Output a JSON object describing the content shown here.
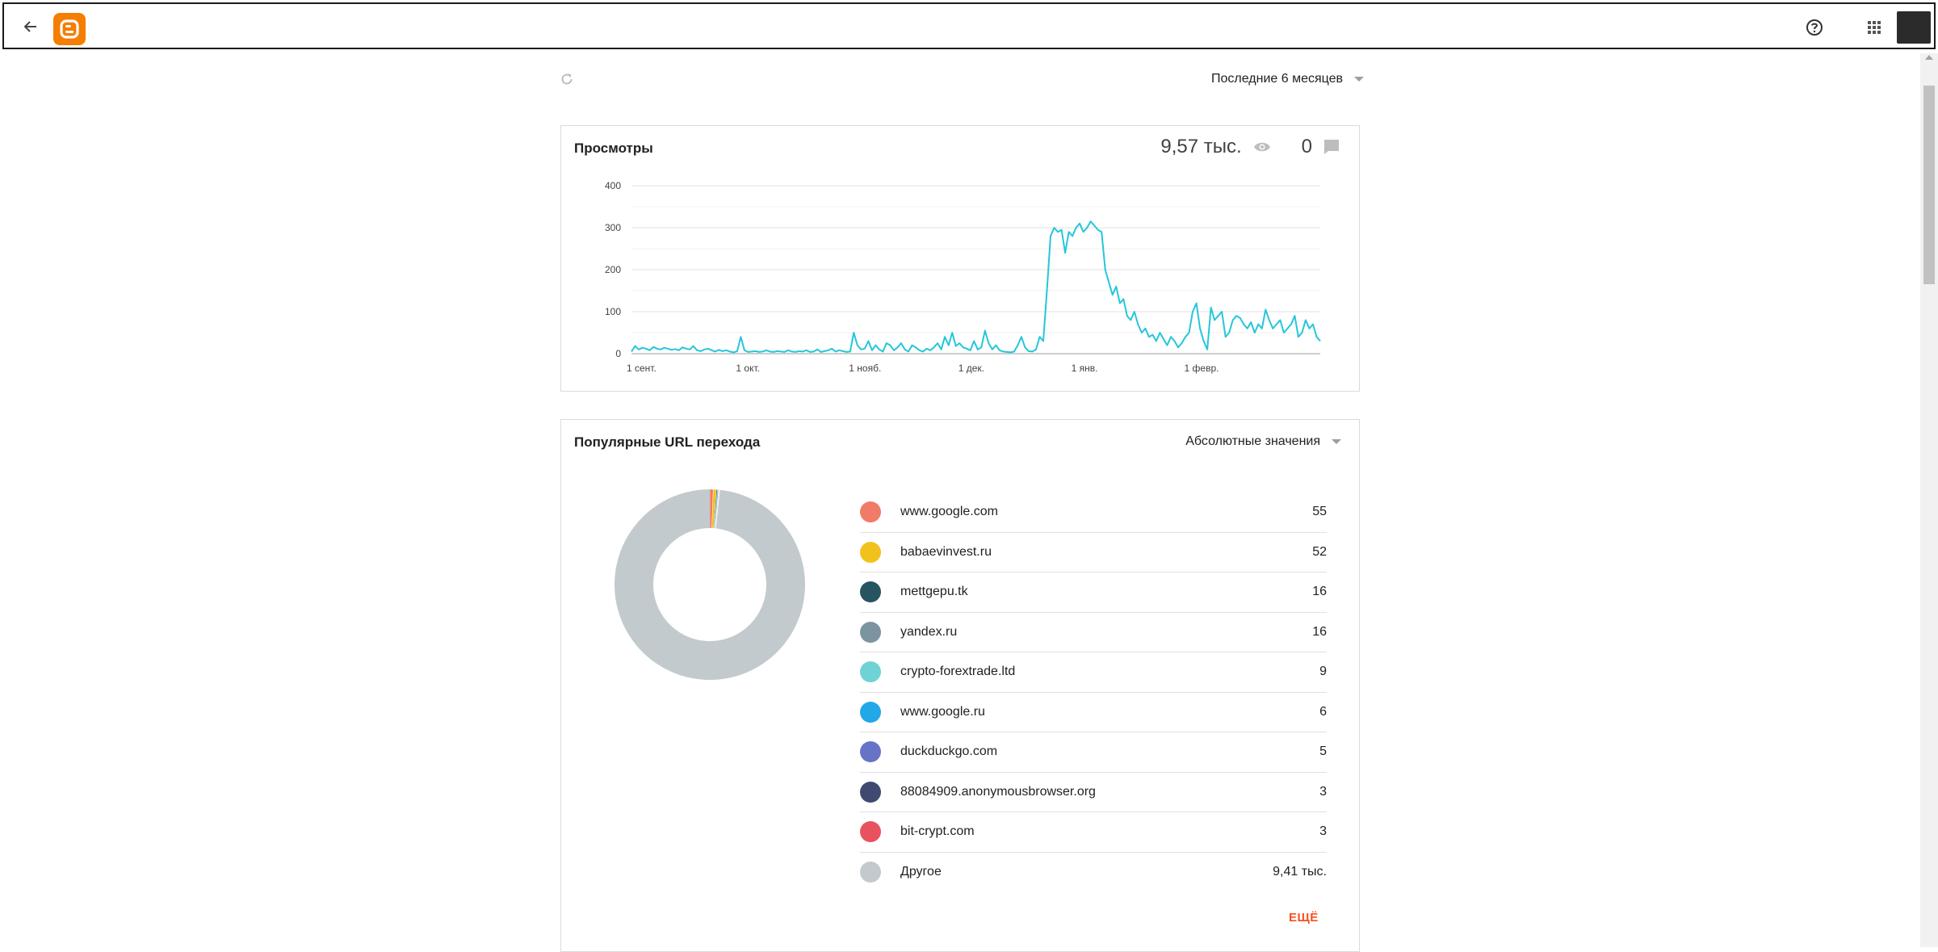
{
  "toolbar": {
    "back_icon": "arrow-left-icon",
    "logo_icon": "blogger-logo-icon",
    "help_icon": "help-circle-icon",
    "apps_icon": "apps-grid-icon"
  },
  "controls": {
    "refresh_icon": "refresh-icon",
    "period_label": "Последние 6 месяцев"
  },
  "views_card": {
    "title": "Просмотры",
    "views_total": "9,57 тыс.",
    "comments_total": "0",
    "chart_data": {
      "type": "line",
      "color": "#26c6da",
      "y_ticks": [
        "400",
        "300",
        "200",
        "100",
        "0"
      ],
      "ylim": [
        0,
        400
      ],
      "x_ticks": [
        "1 сент.",
        "1 окт.",
        "1 нояб.",
        "1 дек.",
        "1 янв.",
        "1 февр."
      ],
      "x_tick_days": [
        0,
        30,
        61,
        91,
        122,
        153
      ],
      "values": [
        5,
        18,
        10,
        14,
        12,
        8,
        16,
        12,
        10,
        14,
        12,
        9,
        11,
        8,
        15,
        12,
        10,
        18,
        8,
        6,
        10,
        12,
        8,
        5,
        9,
        6,
        8,
        5,
        3,
        6,
        40,
        8,
        4,
        5,
        6,
        4,
        5,
        8,
        5,
        4,
        6,
        5,
        4,
        8,
        5,
        4,
        6,
        5,
        8,
        4,
        5,
        10,
        4,
        6,
        8,
        12,
        5,
        8,
        6,
        4,
        5,
        50,
        20,
        10,
        12,
        30,
        8,
        20,
        10,
        5,
        25,
        20,
        8,
        15,
        25,
        10,
        5,
        20,
        15,
        8,
        5,
        12,
        8,
        15,
        25,
        10,
        40,
        20,
        50,
        18,
        25,
        15,
        12,
        8,
        30,
        10,
        15,
        55,
        25,
        10,
        20,
        8,
        5,
        4,
        3,
        5,
        20,
        40,
        15,
        6,
        5,
        10,
        40,
        30,
        150,
        280,
        300,
        290,
        295,
        240,
        290,
        280,
        300,
        310,
        290,
        300,
        315,
        305,
        295,
        290,
        200,
        170,
        140,
        160,
        120,
        130,
        90,
        80,
        100,
        70,
        50,
        60,
        40,
        45,
        30,
        50,
        35,
        20,
        40,
        30,
        15,
        25,
        40,
        50,
        100,
        120,
        60,
        30,
        10,
        110,
        80,
        90,
        100,
        40,
        50,
        80,
        90,
        85,
        70,
        60,
        75,
        50,
        70,
        60,
        105,
        80,
        60,
        70,
        80,
        50,
        60,
        70,
        90,
        40,
        50,
        80,
        60,
        70,
        40,
        30
      ]
    }
  },
  "refs_card": {
    "title": "Популярные URL перехода",
    "mode_label": "Абсолютные значения",
    "more_label": "ЕЩЁ",
    "chart_data": {
      "type": "pie",
      "categories": [
        "www.google.com",
        "babaevinvest.ru",
        "mettgepu.tk",
        "yandex.ru",
        "crypto-forextrade.ltd",
        "www.google.ru",
        "duckduckgo.com",
        "88084909.anonymousbrowser.org",
        "bit-crypt.com",
        "Другое"
      ],
      "values": [
        55,
        52,
        16,
        16,
        9,
        6,
        5,
        3,
        3,
        9410
      ]
    },
    "items": [
      {
        "name": "www.google.com",
        "value": "55",
        "color": "#f07b66"
      },
      {
        "name": "babaevinvest.ru",
        "value": "52",
        "color": "#f1c21c"
      },
      {
        "name": "mettgepu.tk",
        "value": "16",
        "color": "#26555f"
      },
      {
        "name": "yandex.ru",
        "value": "16",
        "color": "#7b949f"
      },
      {
        "name": "crypto-forextrade.ltd",
        "value": "9",
        "color": "#6fd3d6"
      },
      {
        "name": "www.google.ru",
        "value": "6",
        "color": "#22a8e7"
      },
      {
        "name": "duckduckgo.com",
        "value": "5",
        "color": "#6774c6"
      },
      {
        "name": "88084909.anonymousbrowser.org",
        "value": "3",
        "color": "#404a71"
      },
      {
        "name": "bit-crypt.com",
        "value": "3",
        "color": "#e8525f"
      },
      {
        "name": "Другое",
        "value": "9,41 тыс.",
        "color": "#c3cacd"
      }
    ]
  }
}
